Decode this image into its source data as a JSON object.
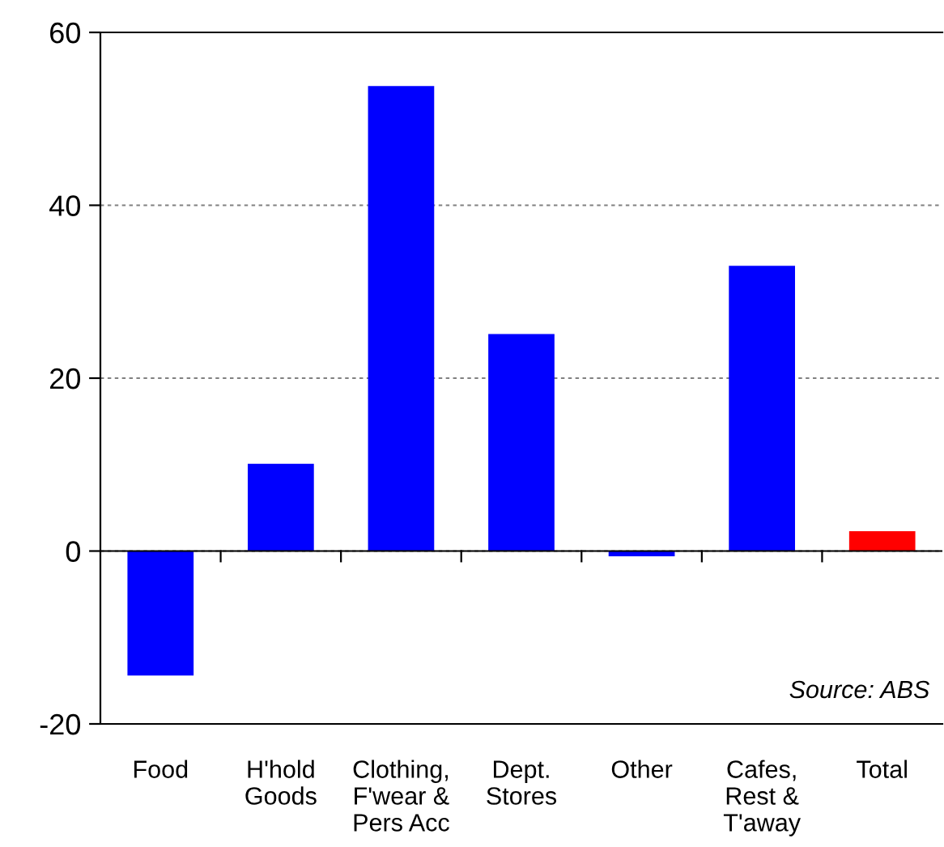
{
  "chart_data": {
    "type": "bar",
    "categories": [
      "Food",
      "H'hold\nGoods",
      "Clothing,\nF'wear &\nPers Acc",
      "Dept.\nStores",
      "Other",
      "Cafes,\nRest &\nT'away",
      "Total"
    ],
    "values": [
      -14.4,
      10.1,
      53.8,
      25.1,
      -0.6,
      33.0,
      2.3
    ],
    "colors": [
      "#0000ff",
      "#0000ff",
      "#0000ff",
      "#0000ff",
      "#0000ff",
      "#0000ff",
      "#ff0000"
    ],
    "ylim": [
      -20,
      60
    ],
    "yticks": [
      -20,
      0,
      20,
      40,
      60
    ],
    "grid": "y",
    "annotations": [
      "Source: ABS"
    ]
  }
}
